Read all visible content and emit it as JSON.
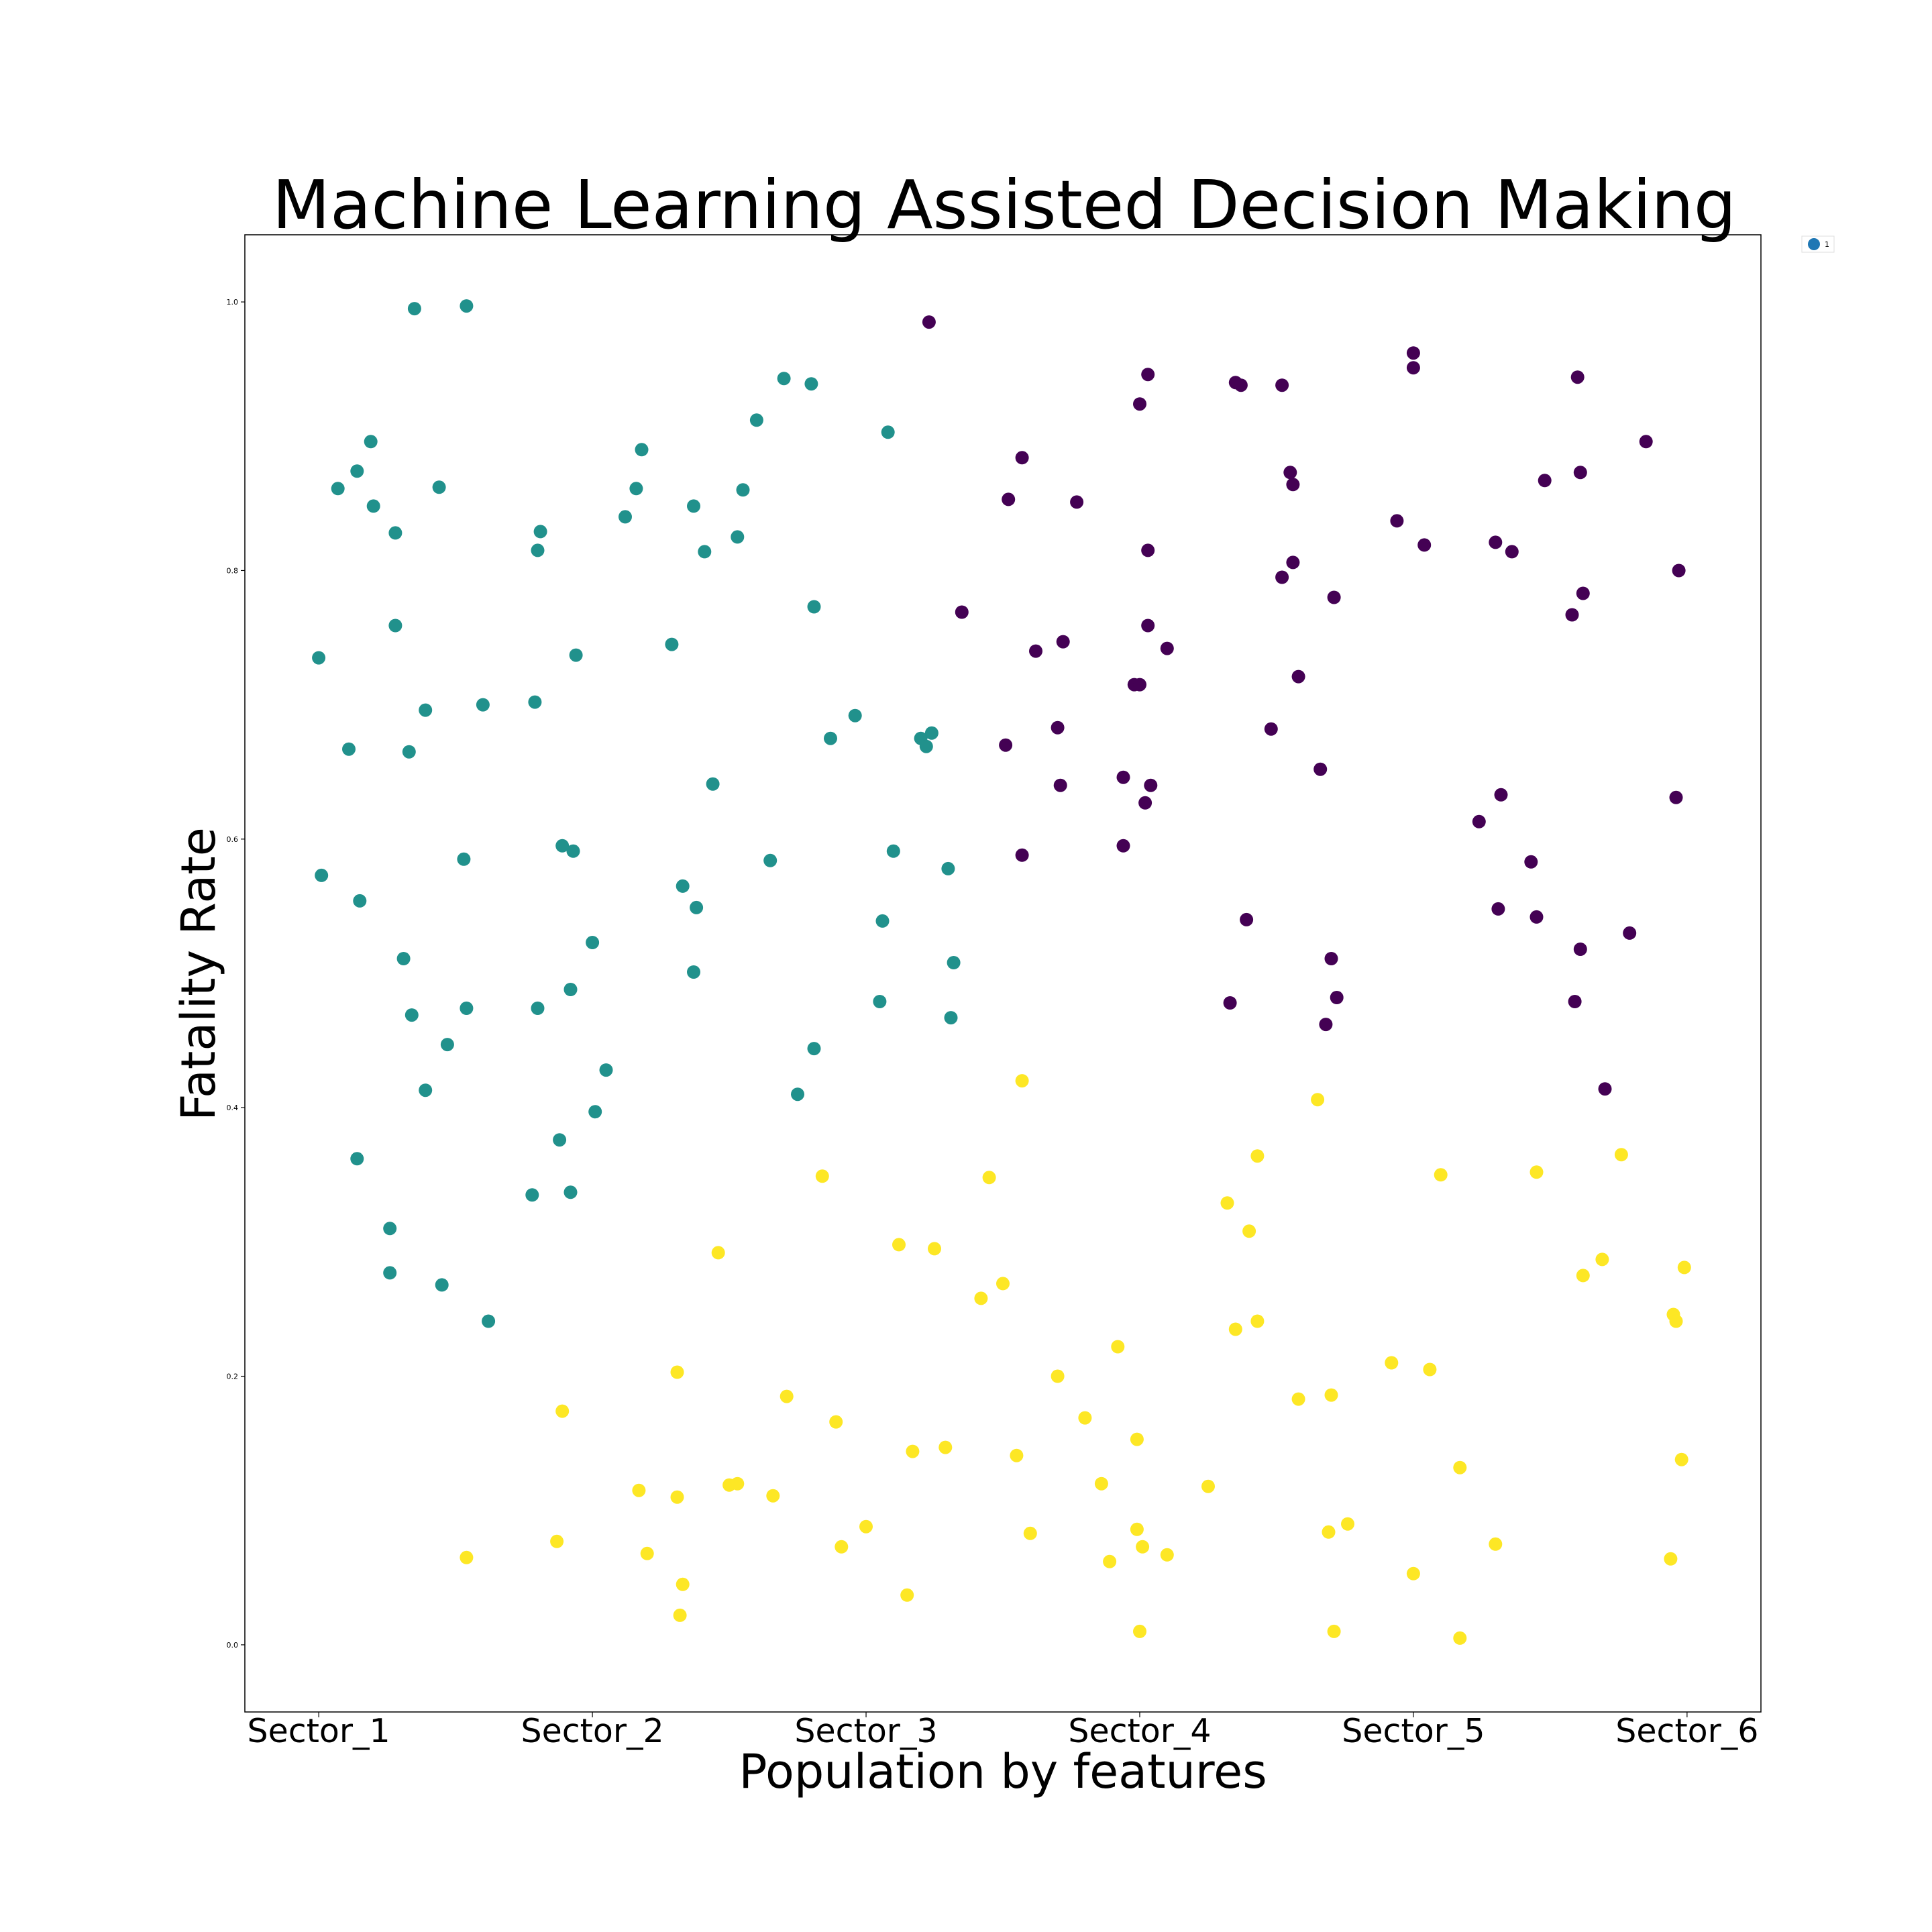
{
  "chart_data": {
    "type": "scatter",
    "title": "Machine Learning Assisted Decision Making",
    "xlabel": "Population by features",
    "ylabel": "Fatality Rate",
    "x_categories": [
      "Sector_1",
      "Sector_2",
      "Sector_3",
      "Sector_4",
      "Sector_5",
      "Sector_6"
    ],
    "xlim": [
      -0.27,
      5.27
    ],
    "ylim": [
      -0.05,
      1.05
    ],
    "yticks": [
      "0.0",
      "0.2",
      "0.4",
      "0.6",
      "0.8",
      "1.0"
    ],
    "grid": false,
    "legend": {
      "position": "outside-top-right",
      "entries": [
        "1"
      ]
    },
    "colors": {
      "teal": "#21918c",
      "purple": "#440154",
      "yellow": "#fde725",
      "legend_marker": "#1f77b4",
      "axes": "#000000"
    },
    "series": [
      {
        "color": "#21918c",
        "points": [
          [
            0.35,
            0.995
          ],
          [
            0.54,
            0.997
          ],
          [
            0.19,
            0.896
          ],
          [
            0.07,
            0.861
          ],
          [
            0.14,
            0.874
          ],
          [
            0.2,
            0.848
          ],
          [
            0.28,
            0.828
          ],
          [
            0.44,
            0.862
          ],
          [
            0.28,
            0.759
          ],
          [
            0.0,
            0.735
          ],
          [
            0.11,
            0.667
          ],
          [
            0.39,
            0.696
          ],
          [
            0.33,
            0.665
          ],
          [
            0.6,
            0.7
          ],
          [
            0.01,
            0.573
          ],
          [
            0.15,
            0.554
          ],
          [
            0.53,
            0.585
          ],
          [
            0.31,
            0.511
          ],
          [
            0.34,
            0.469
          ],
          [
            0.54,
            0.474
          ],
          [
            0.47,
            0.447
          ],
          [
            0.39,
            0.413
          ],
          [
            0.14,
            0.362
          ],
          [
            0.26,
            0.31
          ],
          [
            0.26,
            0.277
          ],
          [
            0.45,
            0.268
          ],
          [
            0.62,
            0.241
          ],
          [
            0.8,
            0.815
          ],
          [
            0.79,
            0.702
          ],
          [
            0.81,
            0.829
          ],
          [
            0.94,
            0.737
          ],
          [
            0.89,
            0.595
          ],
          [
            0.93,
            0.591
          ],
          [
            1.0,
            0.523
          ],
          [
            0.92,
            0.488
          ],
          [
            0.8,
            0.474
          ],
          [
            1.05,
            0.428
          ],
          [
            1.01,
            0.397
          ],
          [
            0.88,
            0.376
          ],
          [
            0.78,
            0.335
          ],
          [
            0.92,
            0.337
          ],
          [
            1.12,
            0.84
          ],
          [
            1.16,
            0.861
          ],
          [
            1.18,
            0.89
          ],
          [
            1.29,
            0.745
          ],
          [
            1.37,
            0.848
          ],
          [
            1.41,
            0.814
          ],
          [
            1.53,
            0.825
          ],
          [
            1.55,
            0.86
          ],
          [
            1.6,
            0.912
          ],
          [
            1.7,
            0.943
          ],
          [
            1.8,
            0.939
          ],
          [
            1.81,
            0.773
          ],
          [
            1.87,
            0.675
          ],
          [
            1.96,
            0.692
          ],
          [
            1.44,
            0.641
          ],
          [
            1.65,
            0.584
          ],
          [
            1.33,
            0.565
          ],
          [
            1.38,
            0.549
          ],
          [
            1.37,
            0.501
          ],
          [
            2.08,
            0.903
          ],
          [
            2.2,
            0.675
          ],
          [
            2.22,
            0.669
          ],
          [
            2.24,
            0.679
          ],
          [
            2.1,
            0.591
          ],
          [
            2.06,
            0.539
          ],
          [
            2.05,
            0.479
          ],
          [
            2.3,
            0.578
          ],
          [
            2.32,
            0.508
          ],
          [
            2.31,
            0.467
          ],
          [
            1.81,
            0.444
          ],
          [
            1.75,
            0.41
          ]
        ]
      },
      {
        "color": "#440154",
        "points": [
          [
            2.23,
            0.985
          ],
          [
            2.35,
            0.769
          ],
          [
            2.52,
            0.853
          ],
          [
            2.57,
            0.884
          ],
          [
            2.62,
            0.74
          ],
          [
            2.72,
            0.747
          ],
          [
            2.77,
            0.851
          ],
          [
            2.51,
            0.67
          ],
          [
            2.7,
            0.683
          ],
          [
            2.71,
            0.64
          ],
          [
            2.57,
            0.588
          ],
          [
            2.94,
            0.646
          ],
          [
            2.94,
            0.595
          ],
          [
            2.98,
            0.715
          ],
          [
            3.0,
            0.715
          ],
          [
            3.0,
            0.924
          ],
          [
            3.03,
            0.946
          ],
          [
            3.03,
            0.815
          ],
          [
            3.03,
            0.759
          ],
          [
            3.1,
            0.742
          ],
          [
            3.04,
            0.64
          ],
          [
            3.02,
            0.627
          ],
          [
            3.35,
            0.94
          ],
          [
            3.37,
            0.938
          ],
          [
            3.52,
            0.938
          ],
          [
            3.55,
            0.873
          ],
          [
            3.56,
            0.864
          ],
          [
            3.56,
            0.806
          ],
          [
            3.52,
            0.795
          ],
          [
            3.58,
            0.721
          ],
          [
            3.71,
            0.78
          ],
          [
            3.48,
            0.682
          ],
          [
            3.66,
            0.652
          ],
          [
            3.39,
            0.54
          ],
          [
            3.33,
            0.478
          ],
          [
            3.7,
            0.511
          ],
          [
            3.72,
            0.482
          ],
          [
            3.68,
            0.462
          ],
          [
            4.0,
            0.962
          ],
          [
            4.0,
            0.951
          ],
          [
            3.94,
            0.837
          ],
          [
            4.04,
            0.819
          ],
          [
            4.3,
            0.821
          ],
          [
            4.36,
            0.814
          ],
          [
            4.48,
            0.867
          ],
          [
            4.6,
            0.944
          ],
          [
            4.61,
            0.873
          ],
          [
            4.62,
            0.783
          ],
          [
            4.58,
            0.767
          ],
          [
            4.85,
            0.896
          ],
          [
            4.97,
            0.8
          ],
          [
            4.32,
            0.633
          ],
          [
            4.24,
            0.613
          ],
          [
            4.96,
            0.631
          ],
          [
            4.43,
            0.583
          ],
          [
            4.31,
            0.548
          ],
          [
            4.45,
            0.542
          ],
          [
            4.61,
            0.518
          ],
          [
            4.79,
            0.53
          ],
          [
            4.59,
            0.479
          ],
          [
            4.7,
            0.414
          ]
        ]
      },
      {
        "color": "#fde725",
        "points": [
          [
            0.54,
            0.065
          ],
          [
            0.87,
            0.077
          ],
          [
            0.89,
            0.174
          ],
          [
            1.17,
            0.115
          ],
          [
            1.2,
            0.068
          ],
          [
            1.31,
            0.203
          ],
          [
            1.31,
            0.11
          ],
          [
            1.33,
            0.045
          ],
          [
            1.32,
            0.022
          ],
          [
            1.46,
            0.292
          ],
          [
            1.5,
            0.119
          ],
          [
            1.53,
            0.12
          ],
          [
            1.66,
            0.111
          ],
          [
            1.71,
            0.185
          ],
          [
            1.84,
            0.349
          ],
          [
            1.89,
            0.166
          ],
          [
            1.91,
            0.073
          ],
          [
            2.0,
            0.088
          ],
          [
            2.12,
            0.298
          ],
          [
            2.17,
            0.144
          ],
          [
            2.15,
            0.037
          ],
          [
            2.25,
            0.295
          ],
          [
            2.29,
            0.147
          ],
          [
            2.42,
            0.258
          ],
          [
            2.45,
            0.348
          ],
          [
            2.5,
            0.269
          ],
          [
            2.55,
            0.141
          ],
          [
            2.6,
            0.083
          ],
          [
            2.57,
            0.42
          ],
          [
            2.7,
            0.2
          ],
          [
            2.8,
            0.169
          ],
          [
            2.86,
            0.12
          ],
          [
            2.89,
            0.062
          ],
          [
            2.92,
            0.222
          ],
          [
            2.99,
            0.153
          ],
          [
            2.99,
            0.086
          ],
          [
            3.01,
            0.073
          ],
          [
            3.0,
            0.01
          ],
          [
            3.1,
            0.067
          ],
          [
            3.25,
            0.118
          ],
          [
            3.32,
            0.329
          ],
          [
            3.35,
            0.235
          ],
          [
            3.4,
            0.308
          ],
          [
            3.43,
            0.364
          ],
          [
            3.43,
            0.241
          ],
          [
            3.65,
            0.406
          ],
          [
            3.58,
            0.183
          ],
          [
            3.7,
            0.186
          ],
          [
            3.69,
            0.084
          ],
          [
            3.76,
            0.09
          ],
          [
            3.71,
            0.01
          ],
          [
            3.92,
            0.21
          ],
          [
            4.06,
            0.205
          ],
          [
            4.1,
            0.35
          ],
          [
            4.0,
            0.053
          ],
          [
            4.17,
            0.132
          ],
          [
            4.17,
            0.005
          ],
          [
            4.3,
            0.075
          ],
          [
            4.45,
            0.352
          ],
          [
            4.76,
            0.365
          ],
          [
            4.69,
            0.287
          ],
          [
            4.62,
            0.275
          ],
          [
            4.95,
            0.246
          ],
          [
            4.96,
            0.241
          ],
          [
            4.99,
            0.281
          ],
          [
            4.98,
            0.138
          ],
          [
            4.94,
            0.064
          ]
        ]
      }
    ]
  }
}
